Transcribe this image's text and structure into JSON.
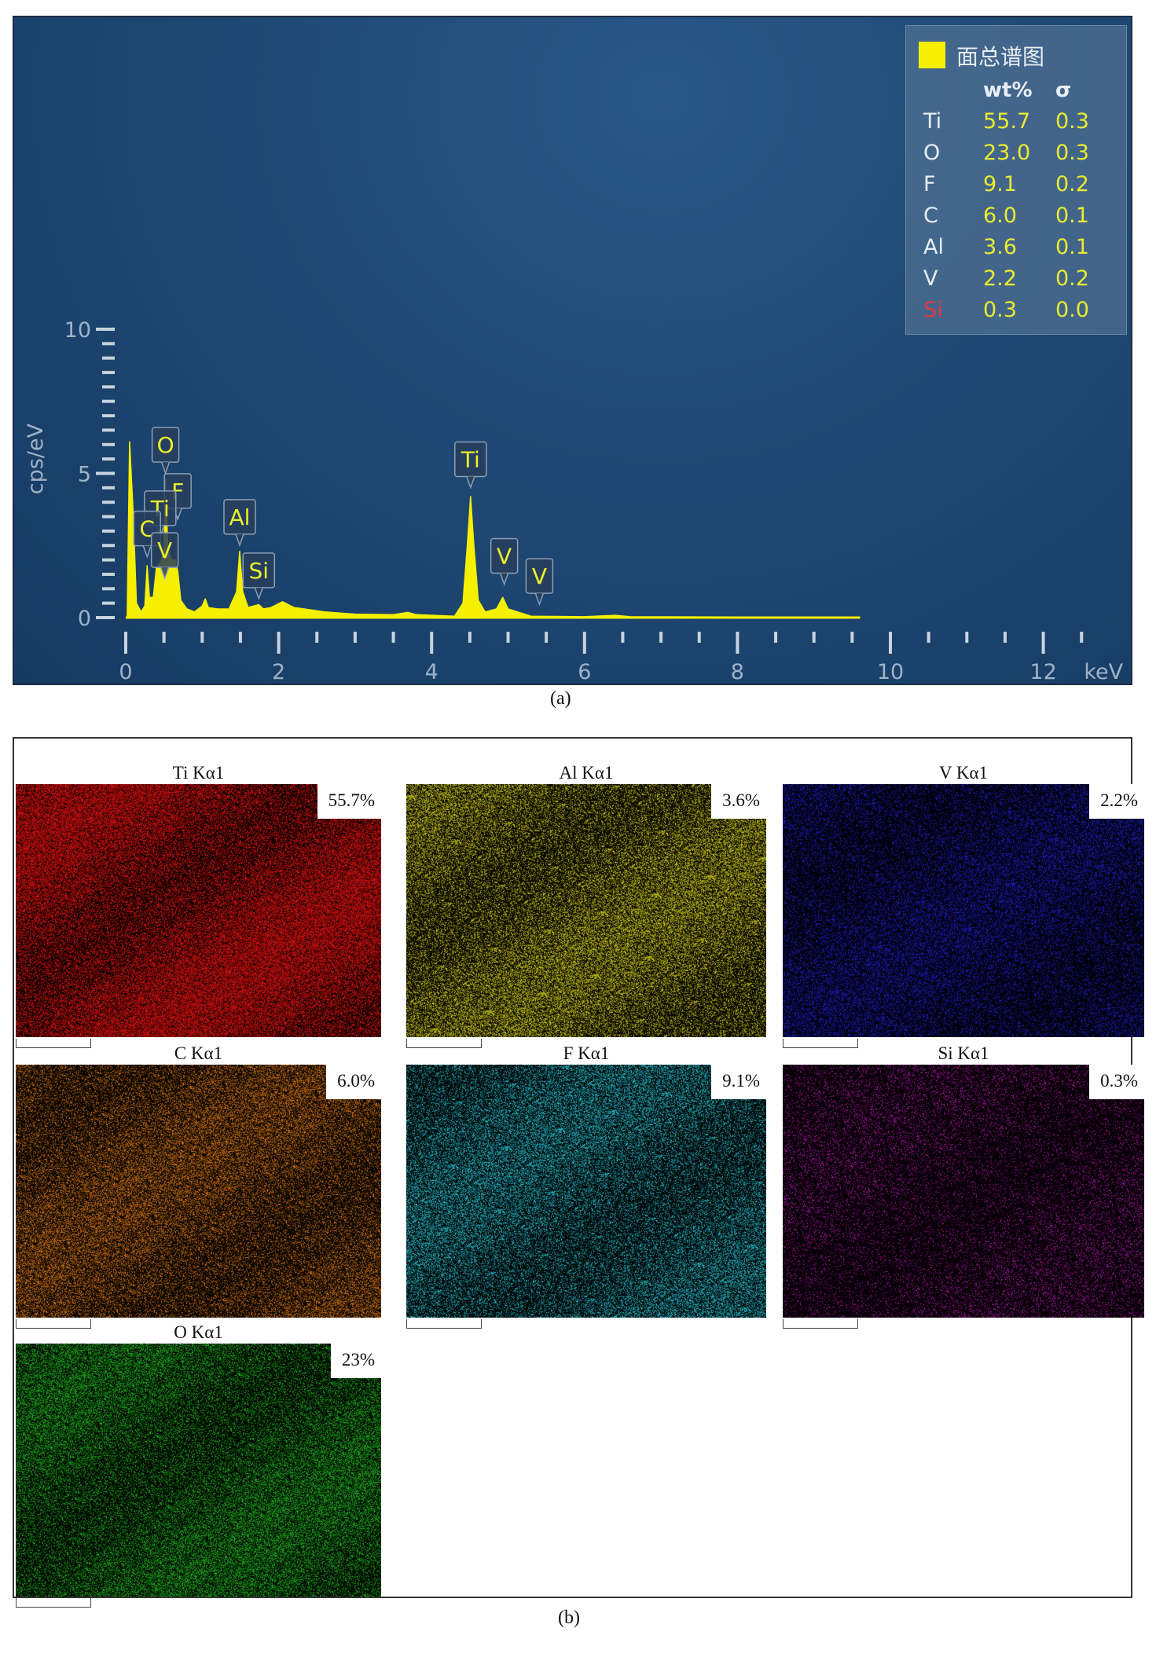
{
  "chart_data": [
    {
      "type": "line",
      "xlabel": "keV",
      "ylabel": "cps/eV",
      "xlim": [
        0,
        12.5
      ],
      "ylim": [
        0,
        10
      ],
      "x_ticks": [
        "0",
        "2",
        "4",
        "6",
        "8",
        "10",
        "12"
      ],
      "y_ticks": [
        "0",
        "5",
        "10"
      ],
      "series": [
        {
          "color": "#f5f000",
          "points": [
            [
              0.02,
              0.1
            ],
            [
              0.05,
              6.1
            ],
            [
              0.1,
              3.5
            ],
            [
              0.14,
              0.5
            ],
            [
              0.2,
              0.2
            ],
            [
              0.25,
              0.4
            ],
            [
              0.28,
              1.8
            ],
            [
              0.31,
              0.7
            ],
            [
              0.36,
              0.7
            ],
            [
              0.4,
              1.7
            ],
            [
              0.45,
              1.9
            ],
            [
              0.5,
              2.3
            ],
            [
              0.52,
              4.8
            ],
            [
              0.55,
              2.4
            ],
            [
              0.6,
              2.0
            ],
            [
              0.65,
              2.0
            ],
            [
              0.68,
              1.6
            ],
            [
              0.72,
              0.6
            ],
            [
              0.8,
              0.3
            ],
            [
              0.9,
              0.2
            ],
            [
              1.0,
              0.4
            ],
            [
              1.04,
              0.65
            ],
            [
              1.08,
              0.35
            ],
            [
              1.2,
              0.3
            ],
            [
              1.35,
              0.3
            ],
            [
              1.45,
              0.9
            ],
            [
              1.49,
              2.3
            ],
            [
              1.53,
              0.9
            ],
            [
              1.6,
              0.35
            ],
            [
              1.74,
              0.45
            ],
            [
              1.8,
              0.3
            ],
            [
              1.9,
              0.35
            ],
            [
              2.05,
              0.55
            ],
            [
              2.2,
              0.35
            ],
            [
              2.6,
              0.2
            ],
            [
              3.0,
              0.12
            ],
            [
              3.5,
              0.1
            ],
            [
              3.69,
              0.18
            ],
            [
              3.8,
              0.1
            ],
            [
              4.3,
              0.05
            ],
            [
              4.41,
              0.5
            ],
            [
              4.47,
              2.6
            ],
            [
              4.51,
              4.2
            ],
            [
              4.55,
              2.6
            ],
            [
              4.61,
              0.6
            ],
            [
              4.7,
              0.2
            ],
            [
              4.85,
              0.3
            ],
            [
              4.93,
              0.7
            ],
            [
              5.0,
              0.3
            ],
            [
              5.3,
              0.05
            ],
            [
              6.0,
              0.03
            ],
            [
              6.4,
              0.08
            ],
            [
              6.6,
              0.03
            ],
            [
              8.0,
              0.02
            ],
            [
              9.6,
              0.01
            ]
          ]
        }
      ],
      "peak_labels": [
        {
          "label": "O",
          "x": 0.52,
          "y": 4.9
        },
        {
          "label": "F",
          "x": 0.68,
          "y": 3.3
        },
        {
          "label": "Ti",
          "x": 0.45,
          "y": 2.7
        },
        {
          "label": "C",
          "x": 0.28,
          "y": 2.0
        },
        {
          "label": "V",
          "x": 0.51,
          "y": 1.25
        },
        {
          "label": "Al",
          "x": 1.49,
          "y": 2.4
        },
        {
          "label": "Si",
          "x": 1.74,
          "y": 0.55
        },
        {
          "label": "Ti",
          "x": 4.51,
          "y": 4.4
        },
        {
          "label": "V",
          "x": 4.95,
          "y": 1.05
        },
        {
          "label": "V",
          "x": 5.41,
          "y": 0.35
        }
      ],
      "legend": {
        "title": "面总谱图",
        "col_wt": "wt%",
        "col_sigma": "σ",
        "rows": [
          {
            "el": "Ti",
            "wt": "55.7",
            "sigma": "0.3",
            "color": "#e6edf5"
          },
          {
            "el": "O",
            "wt": "23.0",
            "sigma": "0.3",
            "color": "#e6edf5"
          },
          {
            "el": "F",
            "wt": "9.1",
            "sigma": "0.2",
            "color": "#e6edf5"
          },
          {
            "el": "C",
            "wt": "6.0",
            "sigma": "0.1",
            "color": "#e6edf5"
          },
          {
            "el": "Al",
            "wt": "3.6",
            "sigma": "0.1",
            "color": "#e6edf5"
          },
          {
            "el": "V",
            "wt": "2.2",
            "sigma": "0.2",
            "color": "#e6edf5"
          },
          {
            "el": "Si",
            "wt": "0.3",
            "sigma": "0.0",
            "color": "#e2383f"
          }
        ]
      }
    },
    {
      "type": "heatmap",
      "maps": [
        {
          "title": "Ti Kα1",
          "percent": "55.7%",
          "color": "#e01010"
        },
        {
          "title": "Al Kα1",
          "percent": "3.6%",
          "color": "#d8d21a"
        },
        {
          "title": "V Kα1",
          "percent": "2.2%",
          "color": "#1d1ecf"
        },
        {
          "title": "C Kα1",
          "percent": "6.0%",
          "color": "#e07a14"
        },
        {
          "title": "F Kα1",
          "percent": "9.1%",
          "color": "#28c8d8"
        },
        {
          "title": "Si Kα1",
          "percent": "0.3%",
          "color": "#c01ab8"
        },
        {
          "title": "O Kα1",
          "percent": "23%",
          "color": "#20b820"
        }
      ]
    }
  ],
  "captions": {
    "a": "(a)",
    "b": "(b)"
  }
}
